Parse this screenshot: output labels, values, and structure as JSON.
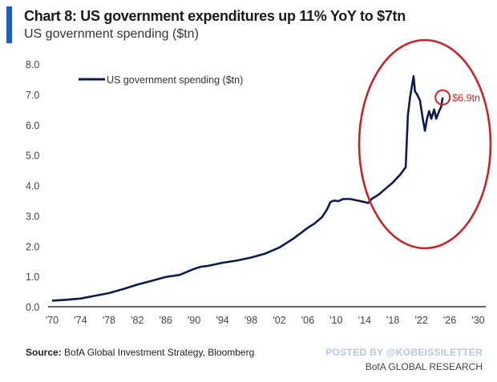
{
  "header": {
    "title": "Chart 8: US government expenditures up 11% YoY to $7tn",
    "subtitle": "US government spending ($tn)"
  },
  "footer": {
    "source_label": "Source:",
    "source_text": " BofA Global Investment Strategy, Bloomberg",
    "posted_by": "POSTED BY @KOBEISSILETTER",
    "brand": "BofA GLOBAL RESEARCH"
  },
  "colors": {
    "series": "#0d1b4a",
    "annotation": "#c0272d",
    "accent": "#1f5fbf"
  },
  "chart_data": {
    "type": "line",
    "title": "US government spending ($tn)",
    "xlabel": "",
    "ylabel": "",
    "xlim": [
      1970,
      2030
    ],
    "ylim": [
      0,
      8
    ],
    "grid": false,
    "legend": {
      "position": "top-left",
      "entries": [
        "US government spending ($tn)"
      ]
    },
    "x_ticks": [
      "'70",
      "'74",
      "'78",
      "'82",
      "'86",
      "'90",
      "'94",
      "'98",
      "'02",
      "'06",
      "'10",
      "'14",
      "'18",
      "'22",
      "'26",
      "'30"
    ],
    "x_tick_values": [
      1970,
      1974,
      1978,
      1982,
      1986,
      1990,
      1994,
      1998,
      2002,
      2006,
      2010,
      2014,
      2018,
      2022,
      2026,
      2030
    ],
    "y_ticks": [
      "0.0",
      "1.0",
      "2.0",
      "3.0",
      "4.0",
      "5.0",
      "6.0",
      "7.0",
      "8.0"
    ],
    "y_tick_values": [
      0,
      1,
      2,
      3,
      4,
      5,
      6,
      7,
      8
    ],
    "series": [
      {
        "name": "US government spending ($tn)",
        "x": [
          1970,
          1972,
          1974,
          1976,
          1978,
          1980,
          1982,
          1984,
          1986,
          1988,
          1990,
          1991,
          1992,
          1994,
          1996,
          1998,
          2000,
          2002,
          2004,
          2006,
          2007,
          2008,
          2008.7,
          2009.2,
          2009.7,
          2010.3,
          2011,
          2012,
          2013,
          2014,
          2014.5,
          2015,
          2016,
          2017,
          2018,
          2019,
          2019.8,
          2020.1,
          2020.4,
          2020.9,
          2021.1,
          2021.4,
          2021.8,
          2022.2,
          2022.5,
          2022.8,
          2023.1,
          2023.4,
          2023.8,
          2024.1,
          2024.5,
          2024.8,
          2025.0
        ],
        "values": [
          0.2,
          0.23,
          0.27,
          0.36,
          0.45,
          0.58,
          0.73,
          0.85,
          0.98,
          1.05,
          1.25,
          1.32,
          1.35,
          1.45,
          1.52,
          1.62,
          1.75,
          1.95,
          2.25,
          2.6,
          2.75,
          2.95,
          3.2,
          3.45,
          3.5,
          3.48,
          3.55,
          3.55,
          3.5,
          3.45,
          3.42,
          3.55,
          3.7,
          3.9,
          4.1,
          4.35,
          4.6,
          6.3,
          6.9,
          7.6,
          7.1,
          7.0,
          6.8,
          6.2,
          5.8,
          6.2,
          6.45,
          6.2,
          6.5,
          6.2,
          6.45,
          6.6,
          6.9
        ]
      }
    ],
    "annotations": [
      {
        "type": "label",
        "text": "$6.9tn",
        "x": 2025.0,
        "y": 6.9
      },
      {
        "type": "highlight-circle",
        "around": "latest value"
      },
      {
        "type": "highlight-ellipse",
        "around": "2014-2025 range"
      }
    ]
  }
}
